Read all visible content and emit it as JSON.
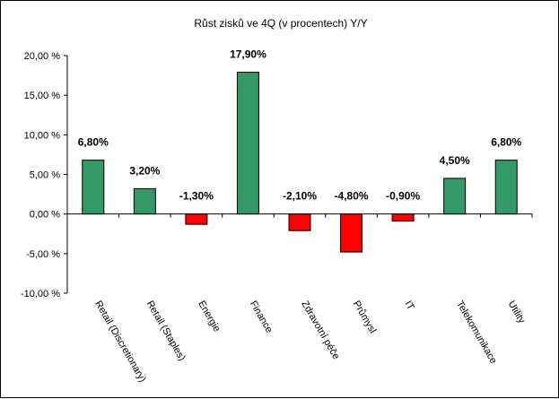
{
  "chart_data": {
    "type": "bar",
    "title": "Růst zisků ve 4Q (v procentech) Y/Y",
    "xlabel": "",
    "ylabel": "",
    "ylim": [
      -10,
      20
    ],
    "yticks": [
      -10,
      -5,
      0,
      5,
      10,
      15,
      20
    ],
    "ytick_labels": [
      "-10,00 %",
      "-5,00 %",
      "0,00 %",
      "5,00 %",
      "10,00 %",
      "15,00 %",
      "20,00 %"
    ],
    "categories": [
      "Retail (Discretionary)",
      "Retail (Staples)",
      "Energie",
      "Finance",
      "Zdravotní péče",
      "Průmysl",
      "IT",
      "Telekomunikace",
      "Utility"
    ],
    "values": [
      6.8,
      3.2,
      -1.3,
      17.9,
      -2.1,
      -4.8,
      -0.9,
      4.5,
      6.8
    ],
    "data_labels": [
      "6,80%",
      "3,20%",
      "-1,30%",
      "17,90%",
      "-2,10%",
      "-4,80%",
      "-0,90%",
      "4,50%",
      "6,80%"
    ],
    "colors": {
      "positive": "#339966",
      "negative": "#ff0000"
    },
    "grid": false,
    "legend": "none"
  }
}
